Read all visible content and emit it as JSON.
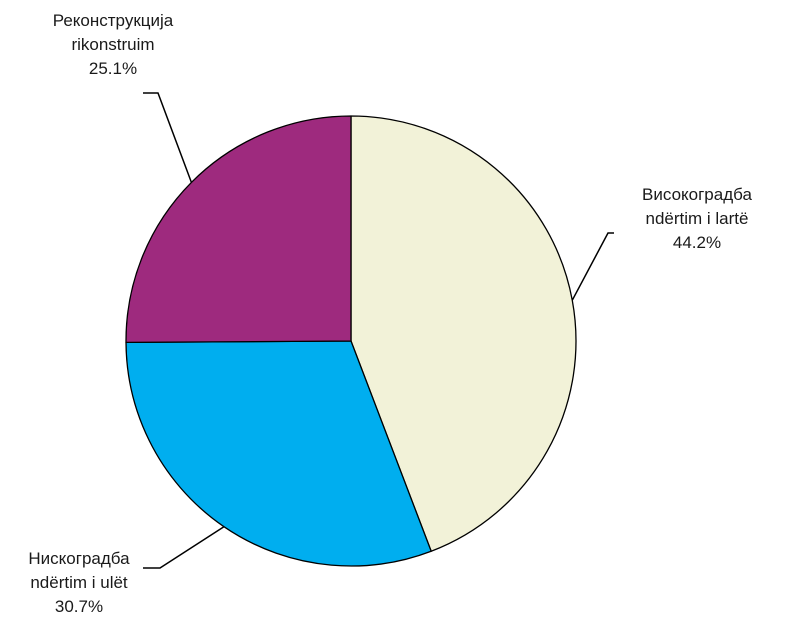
{
  "chart_data": {
    "type": "pie",
    "start_angle_deg": 0,
    "direction": "clockwise",
    "slices": [
      {
        "label_line1": "Високоградба",
        "label_line2": "ndërtim i lartë",
        "value": 44.2,
        "value_text": "44.2%",
        "color": "#f2f2d8"
      },
      {
        "label_line1": "Нискоградба",
        "label_line2": "ndërtim i ulët",
        "value": 30.7,
        "value_text": "30.7%",
        "color": "#00aeef"
      },
      {
        "label_line1": "Реконструкција",
        "label_line2": "rikonstruim",
        "value": 25.1,
        "value_text": "25.1%",
        "color": "#9e2a7e"
      }
    ]
  }
}
